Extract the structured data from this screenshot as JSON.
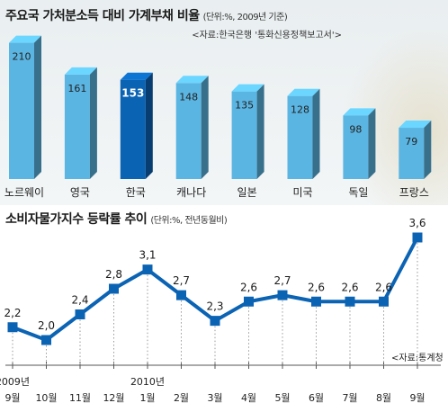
{
  "chart_data": [
    {
      "type": "bar",
      "title": "주요국 가처분소득 대비 가계부채 비율",
      "unit_note": "(단위:%, 2009년 기준)",
      "source": "<자료:한국은행 '통화신용정책보고서'>",
      "categories": [
        "노르웨이",
        "영국",
        "한국",
        "캐나다",
        "일본",
        "미국",
        "독일",
        "프랑스"
      ],
      "values": [
        210,
        161,
        153,
        148,
        135,
        128,
        98,
        79
      ],
      "highlight": "한국",
      "colors": {
        "bar": "#5bb5e2",
        "highlight": "#0b63b4"
      },
      "ylim": [
        0,
        215
      ]
    },
    {
      "type": "line",
      "title": "소비자물가지수 등락률 추이",
      "unit_note": "(단위:%, 전년동월비)",
      "source": "<자료:통계청",
      "x": [
        "9월",
        "10월",
        "11월",
        "12월",
        "1월",
        "2월",
        "3월",
        "4월",
        "5월",
        "6월",
        "7월",
        "8월",
        "9월"
      ],
      "year_labels": [
        {
          "text": "2009년",
          "index": 0
        },
        {
          "text": "2010년",
          "index": 4
        }
      ],
      "values": [
        2.2,
        2.0,
        2.4,
        2.8,
        3.1,
        2.7,
        2.3,
        2.6,
        2.7,
        2.6,
        2.6,
        2.6,
        3.6
      ],
      "value_labels": [
        "2,2",
        "2,0",
        "2,4",
        "2,8",
        "3,1",
        "2,7",
        "2,3",
        "2,6",
        "2,7",
        "2,6",
        "2,6",
        "2,6",
        "3,6"
      ],
      "ylim": [
        2.0,
        3.6
      ],
      "colors": {
        "line": "#0b63b4"
      }
    }
  ]
}
